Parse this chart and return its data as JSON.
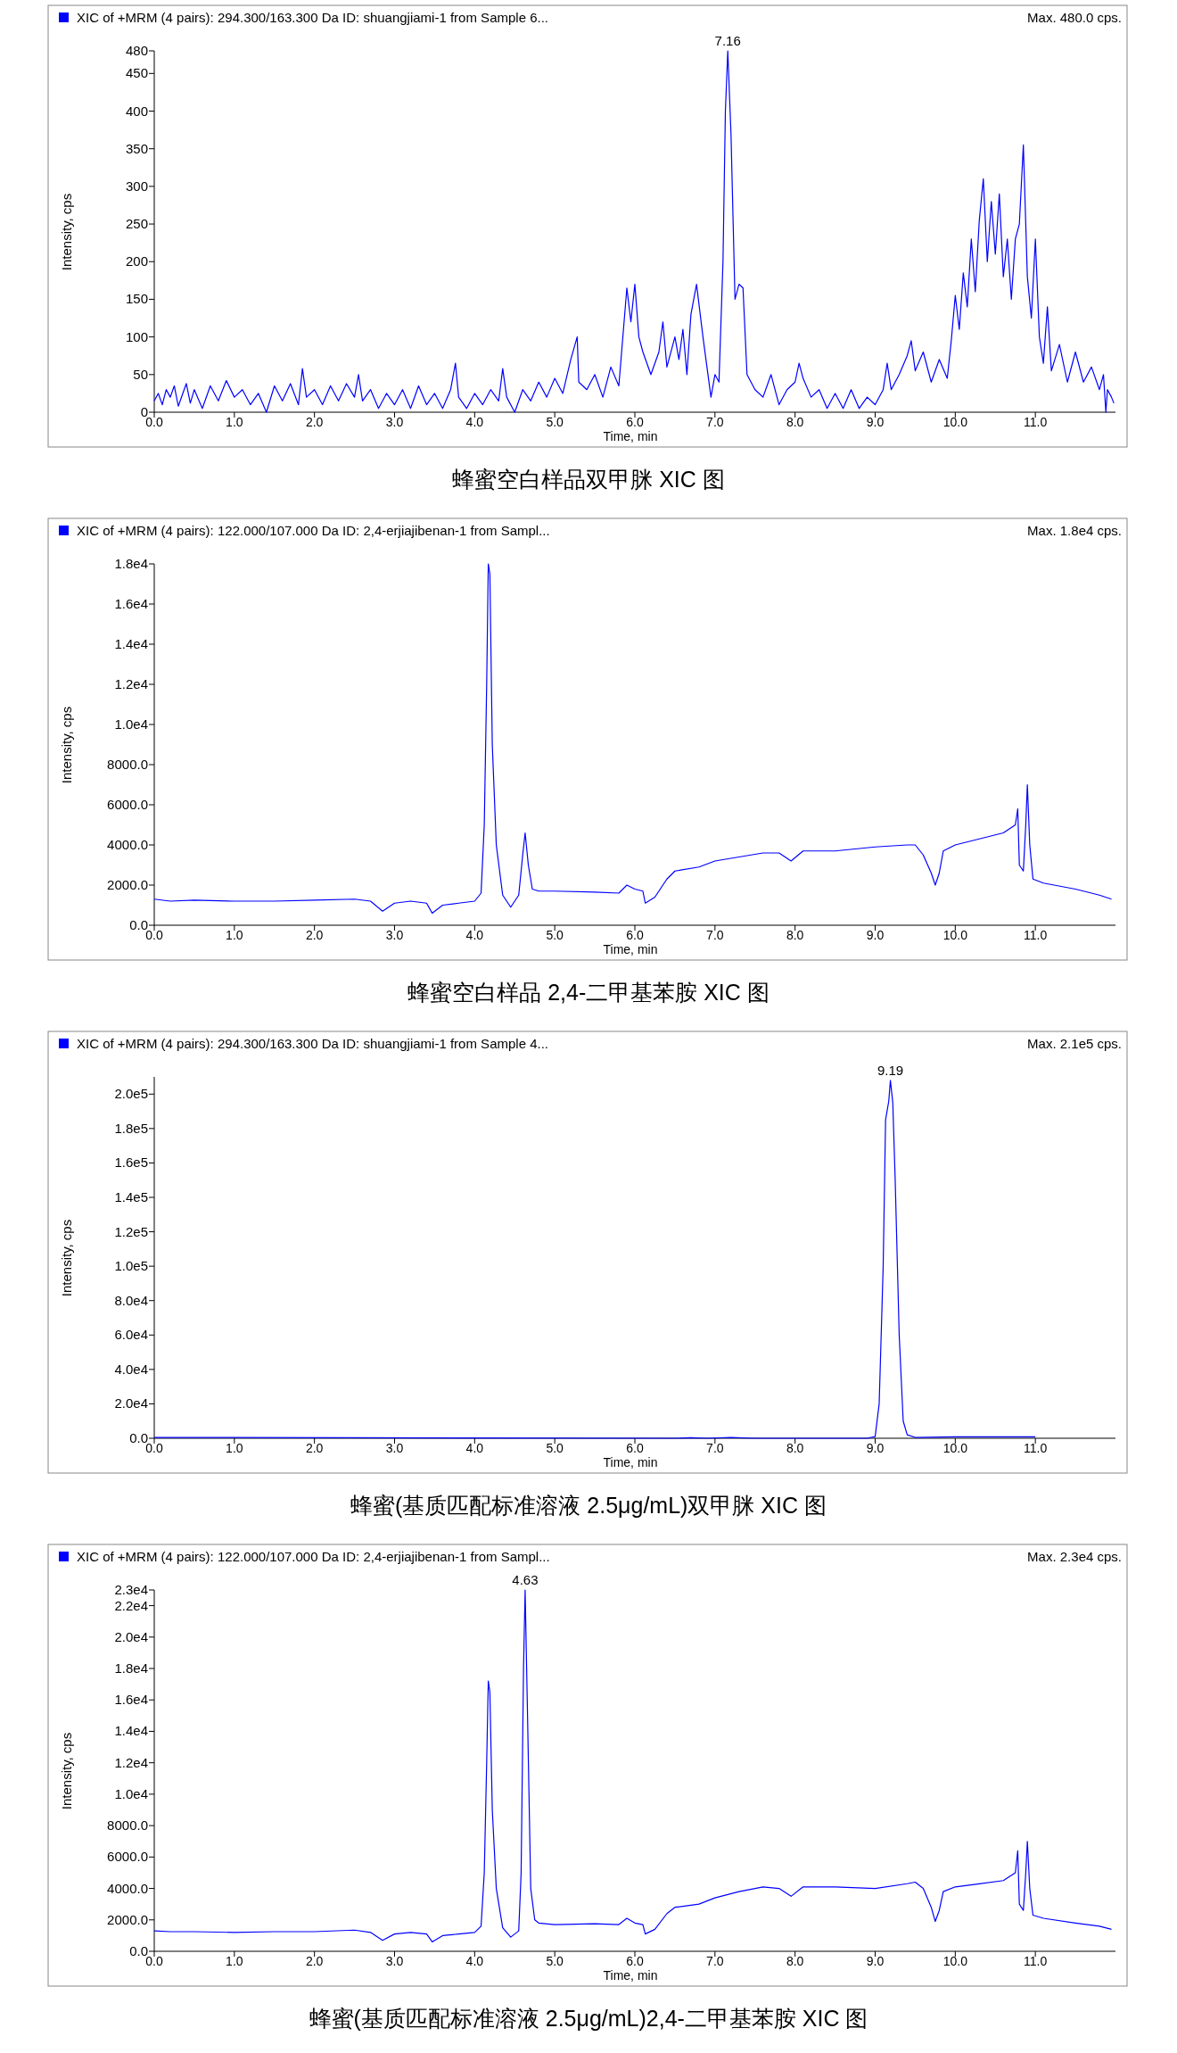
{
  "chart_data": [
    {
      "type": "line",
      "subtitle": "Max. 480.0 cps.",
      "xlabel": "Time, min",
      "ylabel": "Intensity, cps",
      "legend": "top left",
      "xlim": [
        0,
        12
      ],
      "ylim": [
        0,
        480
      ],
      "xticks": [
        {
          "value": 0,
          "label": "0.0"
        },
        {
          "value": 1,
          "label": "1.0"
        },
        {
          "value": 2,
          "label": "2.0"
        },
        {
          "value": 3,
          "label": "3.0"
        },
        {
          "value": 4,
          "label": "4.0"
        },
        {
          "value": 5,
          "label": "5.0"
        },
        {
          "value": 6,
          "label": "6.0"
        },
        {
          "value": 7,
          "label": "7.0"
        },
        {
          "value": 8,
          "label": "8.0"
        },
        {
          "value": 9,
          "label": "9.0"
        },
        {
          "value": 10,
          "label": "10.0"
        },
        {
          "value": 11,
          "label": "11.0"
        }
      ],
      "yticks": [
        0,
        50,
        100,
        150,
        200,
        250,
        300,
        350,
        400,
        450,
        480
      ],
      "annotations": [
        {
          "text": "7.16",
          "x": 7.16,
          "y": 480
        },
        "蜂蜜空白样品双甲脒 XIC 图"
      ],
      "series": [
        {
          "name": "XIC of +MRM (4 pairs): 294.300/163.300 Da ID: shuangjiami-1 from Sample 6...",
          "color": "#0000ff",
          "x": [
            0,
            0.05,
            0.1,
            0.15,
            0.2,
            0.25,
            0.3,
            0.4,
            0.45,
            0.5,
            0.6,
            0.7,
            0.8,
            0.9,
            1.0,
            1.1,
            1.2,
            1.3,
            1.4,
            1.5,
            1.6,
            1.7,
            1.8,
            1.85,
            1.9,
            2.0,
            2.1,
            2.2,
            2.3,
            2.4,
            2.5,
            2.55,
            2.6,
            2.7,
            2.8,
            2.9,
            3.0,
            3.1,
            3.2,
            3.3,
            3.4,
            3.5,
            3.6,
            3.7,
            3.76,
            3.8,
            3.9,
            4.0,
            4.1,
            4.2,
            4.3,
            4.35,
            4.4,
            4.5,
            4.6,
            4.7,
            4.8,
            4.9,
            5.0,
            5.1,
            5.2,
            5.28,
            5.3,
            5.4,
            5.5,
            5.6,
            5.7,
            5.8,
            5.9,
            5.95,
            6.0,
            6.05,
            6.1,
            6.2,
            6.3,
            6.35,
            6.4,
            6.5,
            6.55,
            6.6,
            6.65,
            6.7,
            6.77,
            6.85,
            6.9,
            6.95,
            7.0,
            7.05,
            7.1,
            7.13,
            7.16,
            7.2,
            7.25,
            7.3,
            7.35,
            7.4,
            7.5,
            7.6,
            7.7,
            7.8,
            7.9,
            8.0,
            8.05,
            8.1,
            8.2,
            8.3,
            8.4,
            8.5,
            8.6,
            8.7,
            8.8,
            8.9,
            9.0,
            9.1,
            9.15,
            9.2,
            9.3,
            9.4,
            9.45,
            9.5,
            9.6,
            9.7,
            9.8,
            9.9,
            9.95,
            10.0,
            10.05,
            10.1,
            10.15,
            10.2,
            10.25,
            10.3,
            10.35,
            10.4,
            10.45,
            10.5,
            10.55,
            10.6,
            10.65,
            10.7,
            10.75,
            10.8,
            10.85,
            10.9,
            10.95,
            11.0,
            11.05,
            11.1,
            11.15,
            11.2,
            11.3,
            11.4,
            11.5,
            11.6,
            11.7,
            11.8,
            11.85,
            11.88,
            11.9,
            11.95,
            11.98
          ],
          "values": [
            15,
            25,
            10,
            30,
            20,
            35,
            8,
            38,
            12,
            30,
            5,
            35,
            15,
            42,
            20,
            30,
            10,
            25,
            0,
            35,
            15,
            38,
            10,
            58,
            20,
            30,
            10,
            35,
            15,
            38,
            20,
            50,
            15,
            30,
            5,
            25,
            10,
            30,
            5,
            35,
            10,
            25,
            5,
            30,
            65,
            20,
            5,
            25,
            10,
            30,
            15,
            58,
            20,
            0,
            30,
            15,
            40,
            20,
            45,
            25,
            70,
            100,
            40,
            30,
            50,
            20,
            60,
            35,
            165,
            120,
            170,
            100,
            80,
            50,
            80,
            120,
            60,
            100,
            70,
            110,
            50,
            130,
            170,
            100,
            60,
            20,
            50,
            40,
            200,
            400,
            480,
            370,
            150,
            170,
            165,
            50,
            30,
            20,
            50,
            10,
            30,
            40,
            65,
            45,
            20,
            30,
            5,
            25,
            5,
            30,
            5,
            20,
            10,
            30,
            65,
            30,
            50,
            75,
            95,
            55,
            80,
            40,
            70,
            45,
            95,
            155,
            110,
            185,
            140,
            230,
            160,
            255,
            310,
            200,
            280,
            210,
            290,
            180,
            230,
            150,
            230,
            250,
            355,
            180,
            125,
            230,
            100,
            65,
            140,
            55,
            90,
            40,
            80,
            40,
            60,
            30,
            50,
            0,
            30,
            20,
            12
          ]
        }
      ]
    },
    {
      "type": "line",
      "subtitle": "Max. 1.8e4 cps.",
      "xlabel": "Time, min",
      "ylabel": "Intensity, cps",
      "legend": "top left",
      "xlim": [
        0,
        12
      ],
      "ylim": [
        0,
        18000
      ],
      "xticks": [
        {
          "value": 0,
          "label": "0.0"
        },
        {
          "value": 1,
          "label": "1.0"
        },
        {
          "value": 2,
          "label": "2.0"
        },
        {
          "value": 3,
          "label": "3.0"
        },
        {
          "value": 4,
          "label": "4.0"
        },
        {
          "value": 5,
          "label": "5.0"
        },
        {
          "value": 6,
          "label": "6.0"
        },
        {
          "value": 7,
          "label": "7.0"
        },
        {
          "value": 8,
          "label": "8.0"
        },
        {
          "value": 9,
          "label": "9.0"
        },
        {
          "value": 10,
          "label": "10.0"
        },
        {
          "value": 11,
          "label": "11.0"
        }
      ],
      "yticks": [
        {
          "value": 0,
          "label": "0.0"
        },
        {
          "value": 2000,
          "label": "2000.0"
        },
        {
          "value": 4000,
          "label": "4000.0"
        },
        {
          "value": 6000,
          "label": "6000.0"
        },
        {
          "value": 8000,
          "label": "8000.0"
        },
        {
          "value": 10000,
          "label": "1.0e4"
        },
        {
          "value": 12000,
          "label": "1.2e4"
        },
        {
          "value": 14000,
          "label": "1.4e4"
        },
        {
          "value": 16000,
          "label": "1.6e4"
        },
        {
          "value": 18000,
          "label": "1.8e4"
        }
      ],
      "annotations": [
        "蜂蜜空白样品 2,4-二甲基苯胺 XIC 图"
      ],
      "series": [
        {
          "name": "XIC of +MRM (4 pairs): 122.000/107.000 Da ID: 2,4-erjiajibenan-1 from Sampl...",
          "color": "#0000ff",
          "x": [
            0,
            0.2,
            0.5,
            1.0,
            1.5,
            2.0,
            2.5,
            2.7,
            2.85,
            3.0,
            3.2,
            3.4,
            3.47,
            3.6,
            3.8,
            4.0,
            4.08,
            4.12,
            4.15,
            4.17,
            4.19,
            4.22,
            4.27,
            4.35,
            4.45,
            4.55,
            4.6,
            4.63,
            4.67,
            4.72,
            4.8,
            5.0,
            5.5,
            5.8,
            5.9,
            6.0,
            6.1,
            6.13,
            6.25,
            6.4,
            6.5,
            6.8,
            7.0,
            7.3,
            7.6,
            7.8,
            7.95,
            8.1,
            8.5,
            9.0,
            9.4,
            9.5,
            9.6,
            9.7,
            9.75,
            9.8,
            9.85,
            10.0,
            10.3,
            10.6,
            10.75,
            10.78,
            10.8,
            10.85,
            10.88,
            10.9,
            10.93,
            10.97,
            11.1,
            11.5,
            11.8,
            11.95
          ],
          "values": [
            1300,
            1200,
            1250,
            1200,
            1200,
            1250,
            1300,
            1200,
            700,
            1100,
            1200,
            1100,
            600,
            1000,
            1100,
            1200,
            1600,
            5000,
            12000,
            18000,
            17500,
            9000,
            4000,
            1500,
            900,
            1500,
            3500,
            4600,
            3000,
            1800,
            1700,
            1700,
            1650,
            1600,
            2000,
            1800,
            1700,
            1100,
            1400,
            2300,
            2700,
            2900,
            3200,
            3400,
            3600,
            3600,
            3200,
            3700,
            3700,
            3900,
            4000,
            4000,
            3500,
            2600,
            2000,
            2600,
            3700,
            4000,
            4300,
            4600,
            5000,
            5800,
            3000,
            2700,
            5000,
            7000,
            4000,
            2300,
            2100,
            1800,
            1500,
            1300
          ]
        }
      ]
    },
    {
      "type": "line",
      "subtitle": "Max. 2.1e5 cps.",
      "xlabel": "Time, min",
      "ylabel": "Intensity, cps",
      "legend": "top left",
      "xlim": [
        0,
        12
      ],
      "ylim": [
        0,
        210000
      ],
      "xticks": [
        {
          "value": 0,
          "label": "0.0"
        },
        {
          "value": 1,
          "label": "1.0"
        },
        {
          "value": 2,
          "label": "2.0"
        },
        {
          "value": 3,
          "label": "3.0"
        },
        {
          "value": 4,
          "label": "4.0"
        },
        {
          "value": 5,
          "label": "5.0"
        },
        {
          "value": 6,
          "label": "6.0"
        },
        {
          "value": 7,
          "label": "7.0"
        },
        {
          "value": 8,
          "label": "8.0"
        },
        {
          "value": 9,
          "label": "9.0"
        },
        {
          "value": 10,
          "label": "10.0"
        },
        {
          "value": 11,
          "label": "11.0"
        }
      ],
      "yticks": [
        {
          "value": 0,
          "label": "0.0"
        },
        {
          "value": 20000,
          "label": "2.0e4"
        },
        {
          "value": 40000,
          "label": "4.0e4"
        },
        {
          "value": 60000,
          "label": "6.0e4"
        },
        {
          "value": 80000,
          "label": "8.0e4"
        },
        {
          "value": 100000,
          "label": "1.0e5"
        },
        {
          "value": 120000,
          "label": "1.2e5"
        },
        {
          "value": 140000,
          "label": "1.4e5"
        },
        {
          "value": 160000,
          "label": "1.6e5"
        },
        {
          "value": 180000,
          "label": "1.8e5"
        },
        {
          "value": 200000,
          "label": "2.0e5"
        }
      ],
      "annotations": [
        {
          "text": "9.19",
          "x": 9.19,
          "y": 208000
        },
        "蜂蜜(基质匹配标准溶液 2.5μg/mL)双甲脒 XIC 图"
      ],
      "series": [
        {
          "name": "XIC of +MRM (4 pairs): 294.300/163.300 Da ID: shuangjiami-1 from Sample 4...",
          "color": "#0000ff",
          "x": [
            0,
            6.5,
            6.7,
            6.9,
            7.2,
            7.5,
            8.9,
            9.0,
            9.05,
            9.1,
            9.13,
            9.17,
            9.19,
            9.22,
            9.25,
            9.3,
            9.35,
            9.4,
            9.5,
            10.0,
            11.0
          ],
          "values": [
            500,
            0,
            300,
            0,
            500,
            0,
            0,
            1000,
            20000,
            100000,
            185000,
            196000,
            208000,
            195000,
            150000,
            60000,
            10000,
            2000,
            500,
            800,
            800
          ]
        }
      ]
    },
    {
      "type": "line",
      "subtitle": "Max. 2.3e4 cps.",
      "xlabel": "Time, min",
      "ylabel": "Intensity, cps",
      "legend": "top left",
      "xlim": [
        0,
        12
      ],
      "ylim": [
        0,
        23000
      ],
      "xticks": [
        {
          "value": 0,
          "label": "0.0"
        },
        {
          "value": 1,
          "label": "1.0"
        },
        {
          "value": 2,
          "label": "2.0"
        },
        {
          "value": 3,
          "label": "3.0"
        },
        {
          "value": 4,
          "label": "4.0"
        },
        {
          "value": 5,
          "label": "5.0"
        },
        {
          "value": 6,
          "label": "6.0"
        },
        {
          "value": 7,
          "label": "7.0"
        },
        {
          "value": 8,
          "label": "8.0"
        },
        {
          "value": 9,
          "label": "9.0"
        },
        {
          "value": 10,
          "label": "10.0"
        },
        {
          "value": 11,
          "label": "11.0"
        }
      ],
      "yticks": [
        {
          "value": 0,
          "label": "0.0"
        },
        {
          "value": 2000,
          "label": "2000.0"
        },
        {
          "value": 4000,
          "label": "4000.0"
        },
        {
          "value": 6000,
          "label": "6000.0"
        },
        {
          "value": 8000,
          "label": "8000.0"
        },
        {
          "value": 10000,
          "label": "1.0e4"
        },
        {
          "value": 12000,
          "label": "1.2e4"
        },
        {
          "value": 14000,
          "label": "1.4e4"
        },
        {
          "value": 16000,
          "label": "1.6e4"
        },
        {
          "value": 18000,
          "label": "1.8e4"
        },
        {
          "value": 20000,
          "label": "2.0e4"
        },
        {
          "value": 22000,
          "label": "2.2e4"
        },
        {
          "value": 23000,
          "label": "2.3e4"
        }
      ],
      "annotations": [
        {
          "text": "4.63",
          "x": 4.63,
          "y": 23000
        },
        "蜂蜜(基质匹配标准溶液 2.5μg/mL)2,4-二甲基苯胺 XIC 图"
      ],
      "series": [
        {
          "name": "XIC of +MRM (4 pairs): 122.000/107.000 Da ID: 2,4-erjiajibenan-1 from Sampl...",
          "color": "#0000ff",
          "x": [
            0,
            0.2,
            0.5,
            1.0,
            1.5,
            2.0,
            2.5,
            2.7,
            2.85,
            3.0,
            3.2,
            3.4,
            3.47,
            3.6,
            3.8,
            4.0,
            4.08,
            4.12,
            4.15,
            4.17,
            4.19,
            4.22,
            4.27,
            4.35,
            4.45,
            4.55,
            4.58,
            4.61,
            4.63,
            4.66,
            4.7,
            4.75,
            4.8,
            5.0,
            5.5,
            5.8,
            5.9,
            6.0,
            6.1,
            6.13,
            6.25,
            6.4,
            6.5,
            6.8,
            7.0,
            7.3,
            7.6,
            7.8,
            7.95,
            8.1,
            8.5,
            9.0,
            9.4,
            9.5,
            9.6,
            9.7,
            9.75,
            9.8,
            9.85,
            10.0,
            10.3,
            10.6,
            10.75,
            10.78,
            10.8,
            10.85,
            10.88,
            10.9,
            10.93,
            10.97,
            11.1,
            11.5,
            11.8,
            11.95
          ],
          "values": [
            1300,
            1250,
            1250,
            1200,
            1250,
            1250,
            1350,
            1200,
            700,
            1100,
            1200,
            1100,
            600,
            1000,
            1100,
            1200,
            1600,
            5000,
            12000,
            17200,
            16500,
            9000,
            4000,
            1500,
            900,
            1300,
            5000,
            18000,
            23000,
            15000,
            4000,
            2000,
            1800,
            1700,
            1750,
            1700,
            2100,
            1800,
            1700,
            1100,
            1400,
            2400,
            2800,
            3000,
            3400,
            3800,
            4100,
            4000,
            3500,
            4100,
            4100,
            4000,
            4300,
            4400,
            4000,
            2800,
            1900,
            2600,
            3800,
            4100,
            4300,
            4500,
            5000,
            6400,
            3000,
            2600,
            5000,
            7000,
            4000,
            2300,
            2100,
            1800,
            1600,
            1400
          ]
        }
      ]
    }
  ]
}
